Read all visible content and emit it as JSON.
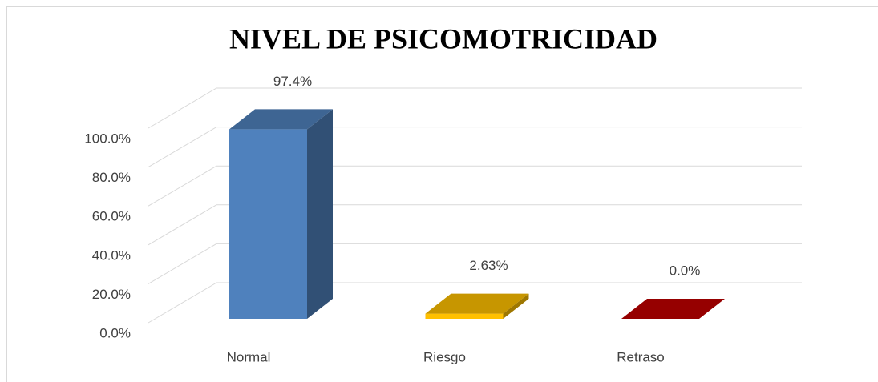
{
  "chart_data": {
    "type": "bar3d",
    "title": "NIVEL DE PSICOMOTRICIDAD",
    "categories": [
      "Normal",
      "Riesgo",
      "Retraso"
    ],
    "values": [
      97.4,
      2.63,
      0
    ],
    "value_labels": [
      "97.4%",
      "2.63%",
      "0.0%"
    ],
    "colors": [
      "#4f81bd",
      "#ffc000",
      "#c00000"
    ],
    "ylim": [
      0,
      100
    ],
    "yticks": [
      {
        "value": 0,
        "label": "0.0%"
      },
      {
        "value": 20,
        "label": "20.0%"
      },
      {
        "value": 40,
        "label": "40.0%"
      },
      {
        "value": 60,
        "label": "60.0%"
      },
      {
        "value": 80,
        "label": "80.0%"
      },
      {
        "value": 100,
        "label": "100.0%"
      }
    ],
    "grid": true
  }
}
